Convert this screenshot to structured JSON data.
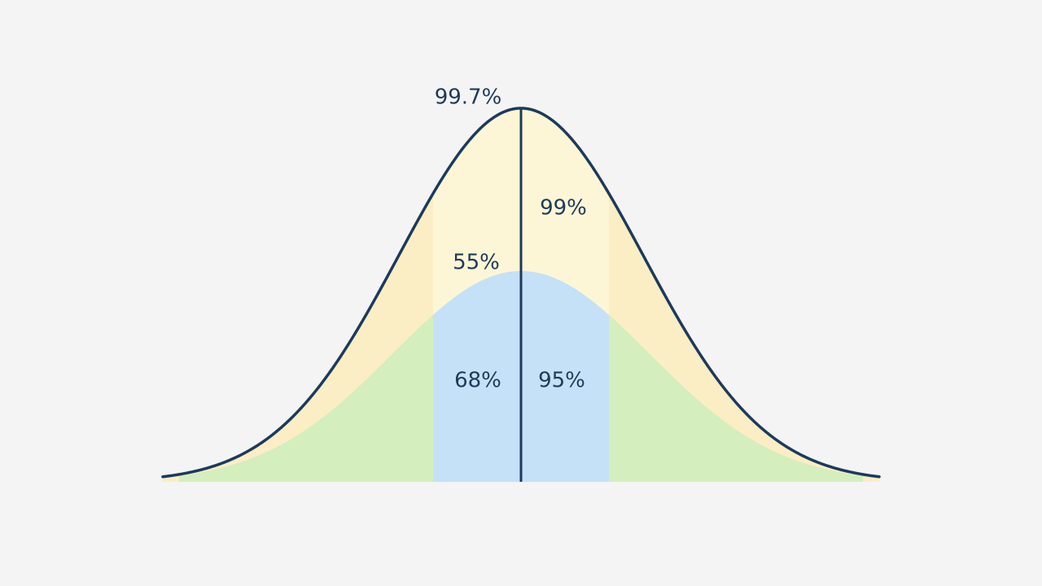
{
  "labels": {
    "peak": "99.7%",
    "upper_right": "99%",
    "upper_left": "55%",
    "center_left": "68%",
    "center_right": "95%"
  }
}
